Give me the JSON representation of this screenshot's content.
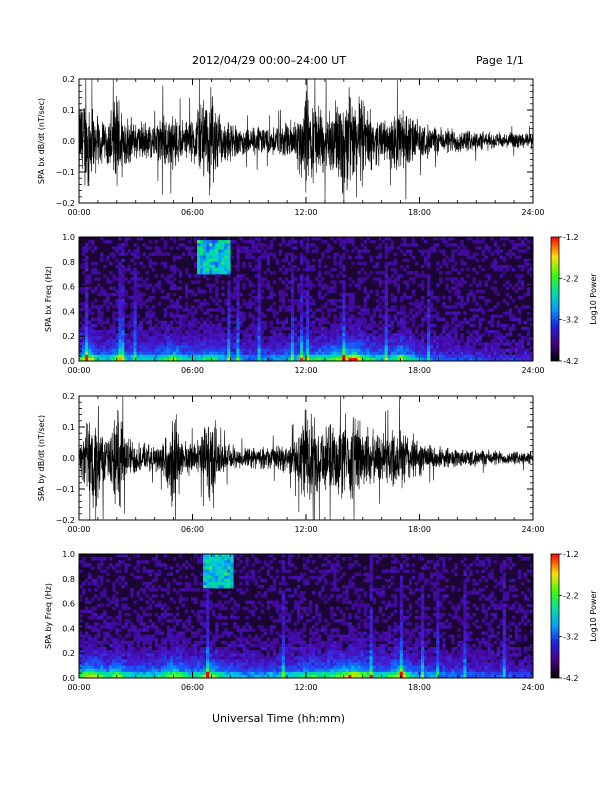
{
  "header": {
    "title": "2012/04/29  00:00–24:00 UT",
    "page": "Page 1/1"
  },
  "footer": {
    "xlabel": "Universal Time (hh:mm)"
  },
  "colors": {
    "trace": "#000000",
    "spectrogram_background": "#1a0533"
  },
  "chart_data": [
    {
      "type": "line",
      "ylabel": "SPA bx dB/dt (nT/sec)",
      "xlim": [
        0,
        24
      ],
      "ylim": [
        -0.2,
        0.2
      ],
      "x_ticks": [
        "00:00",
        "06:00",
        "12:00",
        "18:00",
        "24:00"
      ],
      "y_ticks": [
        "0.2",
        "0.1",
        "0.0",
        "−0.1",
        "−0.2"
      ],
      "series": [
        {
          "x": [
            0,
            0.5,
            1,
            1.5,
            2,
            2.5,
            3,
            3.5,
            4,
            4.5,
            5,
            5.5,
            6,
            6.5,
            7,
            7.5,
            8,
            8.5,
            9,
            9.5,
            10,
            10.5,
            11,
            11.5,
            12,
            12.5,
            13,
            13.5,
            14,
            14.5,
            15,
            15.5,
            16,
            16.5,
            17,
            17.5,
            18,
            18.5,
            19,
            19.5,
            20,
            20.5,
            21,
            21.5,
            22,
            22.5,
            23,
            23.5,
            24
          ],
          "amplitude": [
            0.15,
            0.2,
            0.09,
            0.08,
            0.2,
            0.1,
            0.07,
            0.08,
            0.06,
            0.12,
            0.1,
            0.08,
            0.09,
            0.15,
            0.2,
            0.08,
            0.07,
            0.06,
            0.05,
            0.06,
            0.05,
            0.06,
            0.07,
            0.1,
            0.2,
            0.15,
            0.12,
            0.14,
            0.2,
            0.2,
            0.16,
            0.1,
            0.08,
            0.09,
            0.14,
            0.1,
            0.07,
            0.06,
            0.05,
            0.05,
            0.05,
            0.04,
            0.04,
            0.035,
            0.03,
            0.03,
            0.03,
            0.03,
            0.03
          ]
        }
      ]
    },
    {
      "type": "heatmap",
      "ylabel": "SPA bx Freq (Hz)",
      "xlim": [
        0,
        24
      ],
      "ylim": [
        0,
        1.0
      ],
      "x_ticks": [
        "00:00",
        "06:00",
        "12:00",
        "18:00",
        "24:00"
      ],
      "y_ticks": [
        "1.0",
        "0.8",
        "0.6",
        "0.4",
        "0.2",
        "0.0"
      ],
      "colorbar": {
        "label": "Log10 Power",
        "range": [
          -4.2,
          -1.2
        ],
        "ticks": [
          "-1.2",
          "-2.2",
          "-3.2",
          "-4.2"
        ]
      },
      "activity_x": [
        0,
        0.5,
        1,
        1.5,
        2,
        2.5,
        3,
        3.5,
        4,
        4.5,
        5,
        5.5,
        6,
        6.5,
        7,
        7.5,
        8,
        8.5,
        9,
        9.5,
        10,
        10.5,
        11,
        11.5,
        12,
        12.5,
        13,
        13.5,
        14,
        14.5,
        15,
        15.5,
        16,
        16.5,
        17,
        17.5,
        18,
        18.5,
        19,
        19.5,
        20,
        20.5,
        21,
        21.5,
        22,
        22.5,
        23,
        23.5,
        24
      ],
      "activity": [
        0.6,
        0.9,
        0.6,
        0.5,
        0.8,
        0.5,
        0.5,
        0.6,
        0.5,
        0.7,
        0.8,
        0.6,
        0.55,
        0.6,
        0.7,
        0.55,
        0.5,
        0.45,
        0.4,
        0.4,
        0.4,
        0.45,
        0.5,
        0.55,
        0.6,
        0.65,
        0.7,
        0.75,
        0.9,
        1.0,
        0.8,
        0.6,
        0.55,
        0.6,
        0.85,
        0.6,
        0.45,
        0.4,
        0.35,
        0.3,
        0.3,
        0.28,
        0.26,
        0.24,
        0.22,
        0.22,
        0.2,
        0.2,
        0.2
      ],
      "blob": {
        "x_range": [
          6.2,
          8.0
        ],
        "freq_range": [
          0.7,
          0.98
        ]
      }
    },
    {
      "type": "line",
      "ylabel": "SPA by dB/dt (nT/sec)",
      "xlim": [
        0,
        24
      ],
      "ylim": [
        -0.2,
        0.2
      ],
      "x_ticks": [
        "00:00",
        "06:00",
        "12:00",
        "18:00",
        "24:00"
      ],
      "y_ticks": [
        "0.2",
        "0.1",
        "0.0",
        "−0.1",
        "−0.2"
      ],
      "series": [
        {
          "x": [
            0,
            0.5,
            1,
            1.5,
            2,
            2.5,
            3,
            3.5,
            4,
            4.5,
            5,
            5.5,
            6,
            6.5,
            7,
            7.5,
            8,
            8.5,
            9,
            9.5,
            10,
            10.5,
            11,
            11.5,
            12,
            12.5,
            13,
            13.5,
            14,
            14.5,
            15,
            15.5,
            16,
            16.5,
            17,
            17.5,
            18,
            18.5,
            19,
            19.5,
            20,
            20.5,
            21,
            21.5,
            22,
            22.5,
            23,
            23.5,
            24
          ],
          "amplitude": [
            0.05,
            0.15,
            0.2,
            0.06,
            0.2,
            0.09,
            0.06,
            0.05,
            0.05,
            0.07,
            0.2,
            0.07,
            0.06,
            0.08,
            0.2,
            0.06,
            0.05,
            0.04,
            0.04,
            0.04,
            0.04,
            0.05,
            0.05,
            0.08,
            0.2,
            0.13,
            0.12,
            0.13,
            0.15,
            0.16,
            0.14,
            0.1,
            0.09,
            0.1,
            0.13,
            0.09,
            0.07,
            0.05,
            0.04,
            0.04,
            0.035,
            0.035,
            0.03,
            0.03,
            0.03,
            0.025,
            0.025,
            0.025,
            0.025
          ]
        }
      ]
    },
    {
      "type": "heatmap",
      "ylabel": "SPA by Freq (Hz)",
      "xlim": [
        0,
        24
      ],
      "ylim": [
        0,
        1.0
      ],
      "x_ticks": [
        "00:00",
        "06:00",
        "12:00",
        "18:00",
        "24:00"
      ],
      "y_ticks": [
        "1.0",
        "0.8",
        "0.6",
        "0.4",
        "0.2",
        "0.0"
      ],
      "colorbar": {
        "label": "Log10 Power",
        "range": [
          -4.2,
          -1.2
        ],
        "ticks": [
          "-1.2",
          "-2.2",
          "-3.2",
          "-4.2"
        ]
      },
      "activity_x": [
        0,
        0.5,
        1,
        1.5,
        2,
        2.5,
        3,
        3.5,
        4,
        4.5,
        5,
        5.5,
        6,
        6.5,
        7,
        7.5,
        8,
        8.5,
        9,
        9.5,
        10,
        10.5,
        11,
        11.5,
        12,
        12.5,
        13,
        13.5,
        14,
        14.5,
        15,
        15.5,
        16,
        16.5,
        17,
        17.5,
        18,
        18.5,
        19,
        19.5,
        20,
        20.5,
        21,
        21.5,
        22,
        22.5,
        23,
        23.5,
        24
      ],
      "activity": [
        0.7,
        0.9,
        0.8,
        0.6,
        0.9,
        0.6,
        0.6,
        0.6,
        0.6,
        0.7,
        0.9,
        0.7,
        0.6,
        0.7,
        0.9,
        0.6,
        0.55,
        0.5,
        0.45,
        0.45,
        0.45,
        0.5,
        0.55,
        0.6,
        0.7,
        0.7,
        0.7,
        0.75,
        0.85,
        0.95,
        0.85,
        0.65,
        0.6,
        0.7,
        0.95,
        0.65,
        0.5,
        0.45,
        0.4,
        0.38,
        0.36,
        0.34,
        0.32,
        0.3,
        0.28,
        0.28,
        0.26,
        0.26,
        0.26
      ],
      "blob": {
        "x_range": [
          6.5,
          8.2
        ],
        "freq_range": [
          0.72,
          1.0
        ]
      }
    }
  ]
}
